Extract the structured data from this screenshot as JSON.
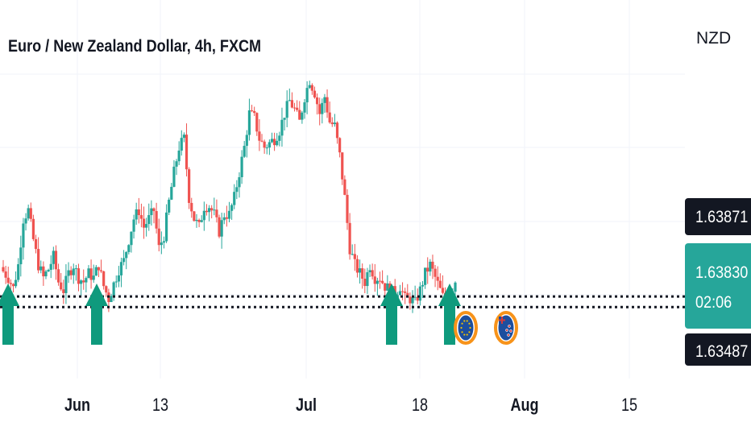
{
  "header": {
    "title": "Euro / New Zealand Dollar, 4h, FXCM",
    "currency": "NZD"
  },
  "price_axis": {
    "high_label": "1.63871",
    "last_label": "1.63830",
    "countdown": "02:06",
    "low_label": "1.63487"
  },
  "colors": {
    "up": "#26a69a",
    "down": "#ef5350",
    "arrow": "#0f9a7d",
    "last_bg": "#26a69a",
    "dark_bg": "#131722",
    "badge_ring": "#f7931a"
  },
  "chart_data": {
    "type": "candlestick",
    "title": "Euro / New Zealand Dollar, 4h, FXCM",
    "symbol": "EURNZD",
    "timeframe": "4h",
    "source": "FXCM",
    "currency": "NZD",
    "x_ticks": [
      "Jun",
      "13",
      "Jul",
      "18",
      "Aug",
      "15"
    ],
    "y_range": [
      1.615,
      1.705
    ],
    "reference_levels": [
      {
        "label": "1.63871",
        "value": 1.63871
      },
      {
        "label": "1.63830",
        "value": 1.6383
      },
      {
        "label": "1.63487",
        "value": 1.63487
      }
    ],
    "support_levels": [
      1.6345,
      1.632
    ],
    "close_path": [
      1.6405,
      1.639,
      1.6365,
      1.642,
      1.653,
      1.655,
      1.648,
      1.642,
      1.639,
      1.641,
      1.644,
      1.638,
      1.636,
      1.64,
      1.642,
      1.639,
      1.638,
      1.64,
      1.639,
      1.642,
      1.637,
      1.634,
      1.6375,
      1.641,
      1.643,
      1.648,
      1.653,
      1.655,
      1.651,
      1.653,
      1.655,
      1.646,
      1.649,
      1.657,
      1.664,
      1.67,
      1.672,
      1.658,
      1.653,
      1.651,
      1.656,
      1.656,
      1.654,
      1.65,
      1.654,
      1.654,
      1.658,
      1.664,
      1.67,
      1.678,
      1.677,
      1.672,
      1.67,
      1.671,
      1.672,
      1.674,
      1.678,
      1.681,
      1.679,
      1.676,
      1.682,
      1.686,
      1.683,
      1.678,
      1.682,
      1.676,
      1.675,
      1.668,
      1.658,
      1.646,
      1.642,
      1.64,
      1.638,
      1.642,
      1.639,
      1.639,
      1.637,
      1.636,
      1.635,
      1.637,
      1.634,
      1.634,
      1.633,
      1.636,
      1.64,
      1.642,
      1.639,
      1.636,
      1.633,
      1.635,
      1.6383
    ],
    "events": [
      {
        "type": "buy-arrow",
        "bar": 0
      },
      {
        "type": "buy-arrow",
        "bar": 21
      },
      {
        "type": "buy-arrow",
        "bar": 81
      },
      {
        "type": "buy-arrow",
        "bar": 87
      },
      {
        "type": "currency-event",
        "currency": "EUR",
        "bar": 90
      },
      {
        "type": "currency-event",
        "currency": "NZD",
        "bar": 101
      }
    ],
    "grid": true
  }
}
